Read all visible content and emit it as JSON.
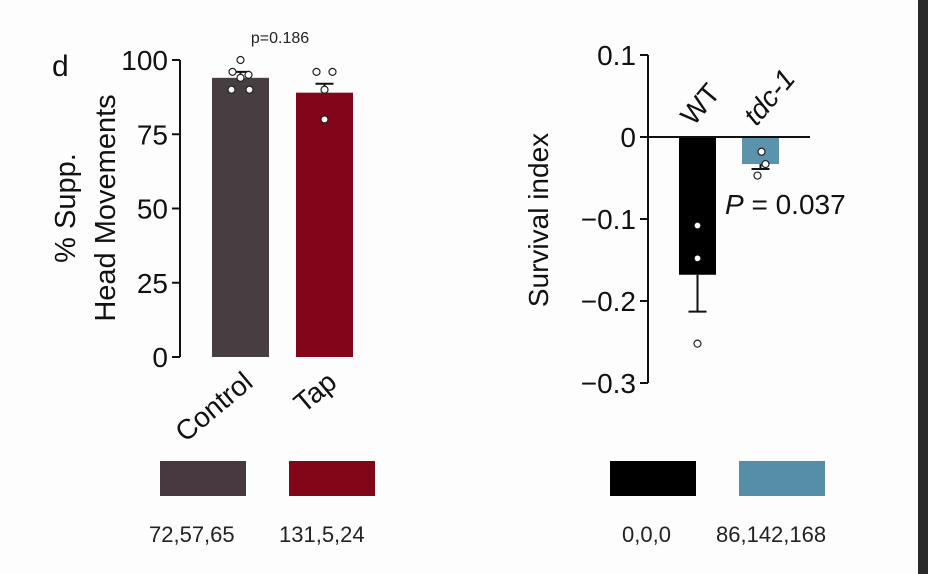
{
  "chart_data": [
    {
      "type": "bar",
      "panel_label": "d",
      "categories": [
        "Control",
        "Tap"
      ],
      "values": [
        94,
        89
      ],
      "errors": [
        2,
        3
      ],
      "points": [
        [
          100,
          96,
          95,
          94,
          90,
          90
        ],
        [
          96,
          96,
          90,
          80
        ]
      ],
      "ylabel_line1": "% Supp.",
      "ylabel_line2": "Head Movements",
      "yticks": [
        0,
        25,
        50,
        75,
        100
      ],
      "ylim": [
        0,
        100
      ],
      "annotation": "p=0.186",
      "colors": [
        "#483e41",
        "#830519"
      ]
    },
    {
      "type": "bar",
      "categories": [
        "WT",
        "tdc-1"
      ],
      "values": [
        -0.168,
        -0.033
      ],
      "errors": [
        0.045,
        0.006
      ],
      "points": [
        [
          -0.108,
          -0.148,
          -0.252
        ],
        [
          -0.018,
          -0.033,
          -0.047
        ]
      ],
      "ylabel": "Survival index",
      "yticks": [
        "0.1",
        "0",
        "−0.1",
        "−0.2",
        "−0.3"
      ],
      "ylim": [
        -0.3,
        0.1
      ],
      "annotation_italic": "P",
      "annotation_rest": " = 0.037",
      "colors": [
        "#000000",
        "#5b93ad"
      ]
    }
  ],
  "legend_swatches": [
    {
      "color": "#483941",
      "rgb": "72,57,65"
    },
    {
      "color": "#830518",
      "rgb": "131,5,24"
    },
    {
      "color": "#000000",
      "rgb": "0,0,0"
    },
    {
      "color": "#568ea8",
      "rgb": "86,142,168"
    }
  ]
}
